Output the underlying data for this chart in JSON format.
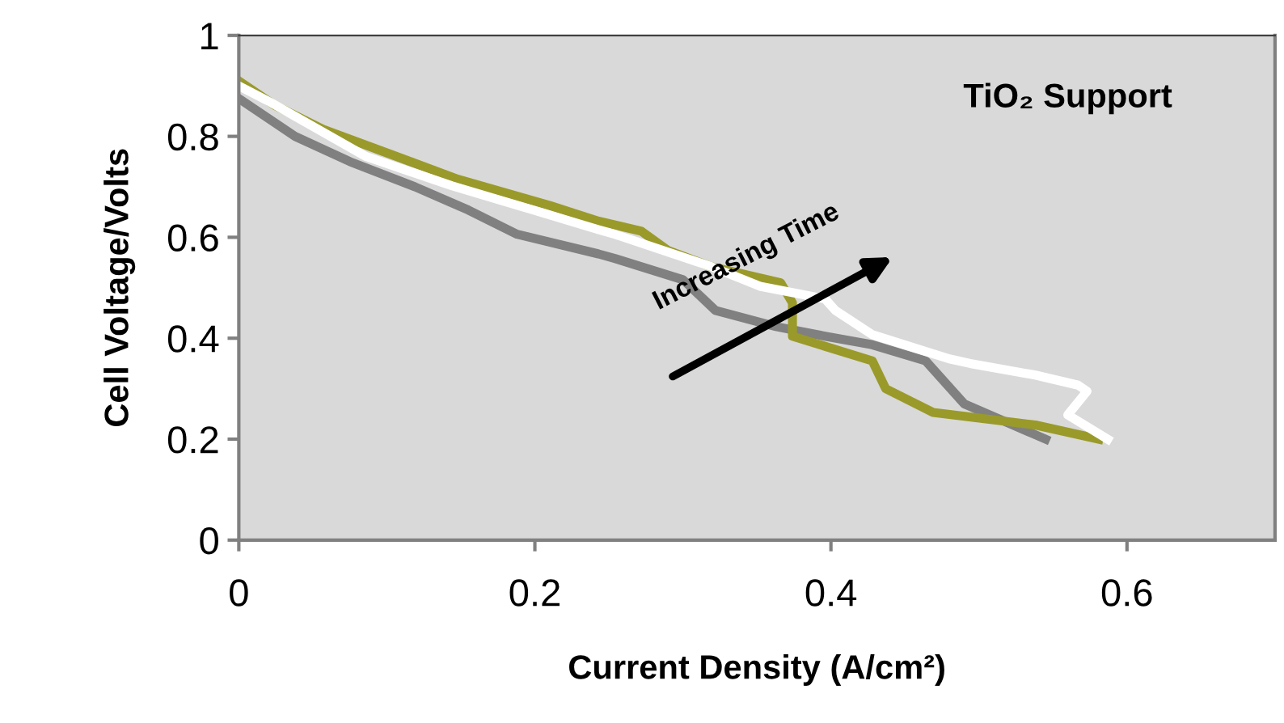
{
  "chart_data": {
    "type": "line",
    "title": "TiO₂ Support",
    "xlabel": "Current Density (A/cm²)",
    "ylabel": "Cell Voltage/Volts",
    "annotations": [
      "Increasing Time"
    ],
    "xlim": [
      0,
      0.7
    ],
    "xticks": [
      0,
      0.2,
      0.4,
      0.6
    ],
    "ylim": [
      0,
      1
    ],
    "yticks": [
      0,
      0.2,
      0.4,
      0.6,
      0.8,
      1
    ],
    "grid": false,
    "legend": false,
    "marker": "none",
    "line_style": "solid",
    "series": [
      {
        "color": "#808080",
        "x": [
          0,
          0.038,
          0.075,
          0.119,
          0.155,
          0.188,
          0.243,
          0.254,
          0.3,
          0.322,
          0.363,
          0.396,
          0.428,
          0.464,
          0.49,
          0.545
        ],
        "values": [
          0.875,
          0.8,
          0.75,
          0.7,
          0.654,
          0.606,
          0.567,
          0.558,
          0.516,
          0.455,
          0.423,
          0.404,
          0.387,
          0.355,
          0.27,
          0.2
        ]
      },
      {
        "color": "#9a9a2a",
        "x": [
          0,
          0.024,
          0.057,
          0.104,
          0.148,
          0.21,
          0.243,
          0.272,
          0.29,
          0.319,
          0.366,
          0.374,
          0.374,
          0.428,
          0.437,
          0.469,
          0.538,
          0.581
        ],
        "values": [
          0.91,
          0.862,
          0.814,
          0.763,
          0.715,
          0.663,
          0.632,
          0.612,
          0.574,
          0.542,
          0.51,
          0.47,
          0.404,
          0.355,
          0.3,
          0.253,
          0.228,
          0.2
        ]
      },
      {
        "color": "#ffffff",
        "x": [
          0,
          0.021,
          0.086,
          0.144,
          0.199,
          0.243,
          0.254,
          0.319,
          0.352,
          0.396,
          0.403,
          0.428,
          0.48,
          0.494,
          0.538,
          0.567,
          0.573,
          0.56,
          0.587
        ],
        "values": [
          0.9,
          0.868,
          0.76,
          0.702,
          0.654,
          0.615,
          0.606,
          0.542,
          0.503,
          0.478,
          0.455,
          0.407,
          0.359,
          0.35,
          0.327,
          0.307,
          0.295,
          0.248,
          0.2
        ]
      }
    ]
  }
}
